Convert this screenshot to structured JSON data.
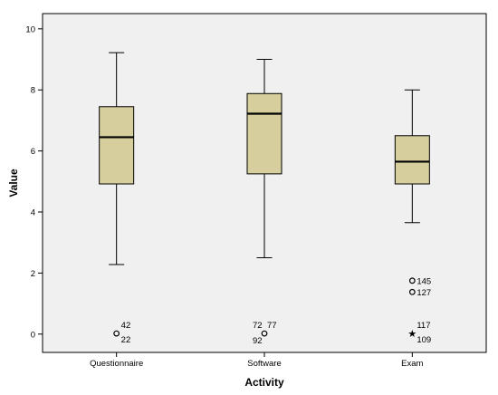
{
  "chart_data": {
    "type": "boxplot",
    "xlabel": "Activity",
    "ylabel": "Value",
    "ylim": [
      -0.6,
      10.5
    ],
    "yticks": [
      0,
      2,
      4,
      6,
      8,
      10
    ],
    "grid": false,
    "colors": {
      "plot_background": "#f0f0f0",
      "box_fill": "#d6cf9d",
      "stroke": "#000000"
    },
    "categories": [
      "Questionnaire",
      "Software",
      "Exam"
    ],
    "boxes": [
      {
        "category": "Questionnaire",
        "whisker_low": 2.28,
        "q1": 4.92,
        "median": 6.45,
        "q3": 7.45,
        "whisker_high": 9.22,
        "outliers": [
          {
            "value": 0.02,
            "marker": "circle",
            "labels": [
              "42",
              "22"
            ]
          }
        ]
      },
      {
        "category": "Software",
        "whisker_low": 2.5,
        "q1": 5.25,
        "median": 7.22,
        "q3": 7.88,
        "whisker_high": 9.0,
        "outliers": [
          {
            "value": 0.02,
            "marker": "circle",
            "labels": [
              "72",
              "77",
              "92"
            ]
          }
        ]
      },
      {
        "category": "Exam",
        "whisker_low": 3.65,
        "q1": 4.92,
        "median": 5.65,
        "q3": 6.5,
        "whisker_high": 8.0,
        "outliers": [
          {
            "value": 1.75,
            "marker": "circle",
            "labels": [
              "145"
            ]
          },
          {
            "value": 1.38,
            "marker": "circle",
            "labels": [
              "127"
            ]
          },
          {
            "value": 0.02,
            "marker": "star",
            "labels": [
              "117",
              "109"
            ]
          }
        ]
      }
    ]
  }
}
